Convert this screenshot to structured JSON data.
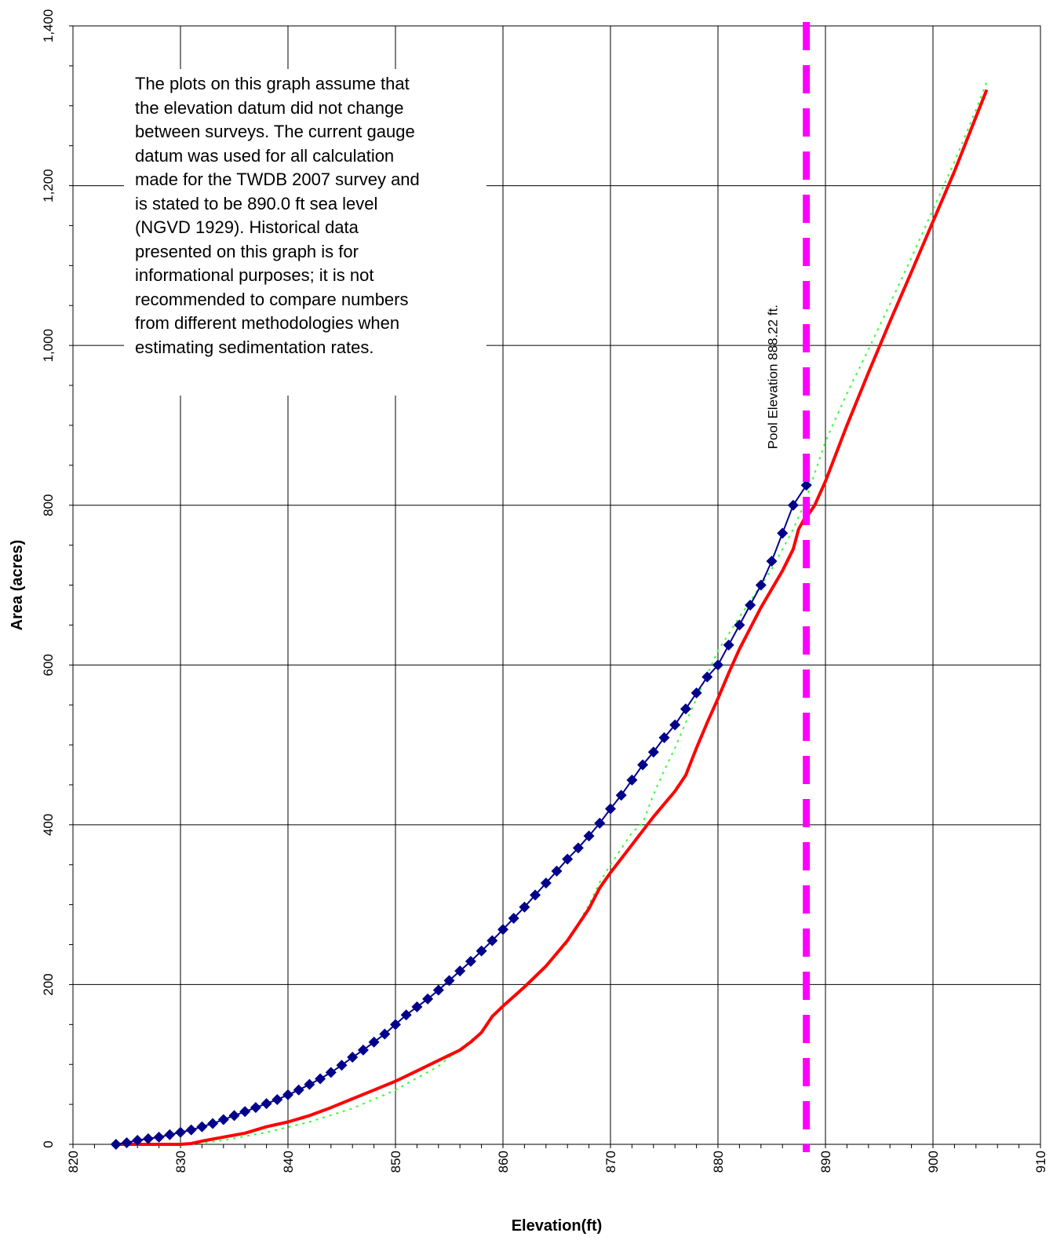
{
  "chart_data": {
    "type": "line",
    "title": "",
    "xlabel": "Elevation(ft)",
    "ylabel": "Area (acres)",
    "xlim": [
      820,
      910
    ],
    "ylim": [
      0,
      1400
    ],
    "x_ticks": [
      "820",
      "830",
      "840",
      "850",
      "860",
      "870",
      "880",
      "890",
      "900",
      "910"
    ],
    "y_ticks": [
      "0",
      "200",
      "400",
      "600",
      "800",
      "1,000",
      "1,200",
      "1,400"
    ],
    "grid": true,
    "legend": "none",
    "series": [
      {
        "color": "#00008B",
        "style": "line-with-diamond-markers",
        "x": [
          824,
          825,
          826,
          827,
          828,
          829,
          830,
          831,
          832,
          833,
          834,
          835,
          836,
          837,
          838,
          839,
          840,
          841,
          842,
          843,
          844,
          845,
          846,
          847,
          848,
          849,
          850,
          851,
          852,
          853,
          854,
          855,
          856,
          857,
          858,
          859,
          860,
          861,
          862,
          863,
          864,
          865,
          866,
          867,
          868,
          869,
          870,
          871,
          872,
          873,
          874,
          875,
          876,
          877,
          878,
          879,
          880,
          881,
          882,
          883,
          884,
          885,
          886,
          887,
          888.22
        ],
        "y": [
          0,
          2,
          5,
          7,
          9,
          12,
          15,
          18,
          22,
          26,
          31,
          36,
          41,
          46,
          51,
          56,
          62,
          68,
          75,
          82,
          90,
          99,
          109,
          118,
          128,
          138,
          150,
          162,
          172,
          182,
          193,
          205,
          217,
          229,
          242,
          255,
          269,
          283,
          297,
          312,
          327,
          342,
          357,
          371,
          386,
          402,
          420,
          437,
          456,
          475,
          491,
          509,
          525,
          545,
          565,
          585,
          600,
          625,
          650,
          675,
          700,
          730,
          765,
          800,
          825
        ]
      },
      {
        "color": "#FF0000",
        "style": "solid-line",
        "x": [
          824,
          826,
          828,
          830,
          831,
          832,
          834,
          836,
          838,
          840,
          842,
          844,
          846,
          848,
          850,
          852,
          854,
          856,
          857,
          858,
          859,
          860,
          862,
          864,
          866,
          868,
          869,
          870,
          872,
          874,
          876,
          877,
          878,
          879,
          880,
          881,
          882,
          884,
          886,
          887,
          887.5,
          888,
          888.5,
          889,
          890,
          892,
          894,
          896,
          898,
          900,
          902,
          904,
          905
        ],
        "y": [
          0,
          0,
          0,
          0,
          1,
          4,
          9,
          14,
          22,
          28,
          36,
          46,
          57,
          68,
          79,
          92,
          105,
          118,
          128,
          140,
          160,
          173,
          197,
          223,
          255,
          295,
          321,
          340,
          375,
          410,
          442,
          462,
          496,
          528,
          558,
          590,
          620,
          672,
          718,
          745,
          770,
          782,
          790,
          800,
          830,
          900,
          966,
          1030,
          1092,
          1155,
          1218,
          1286,
          1320
        ]
      },
      {
        "color": "#33FF33",
        "style": "dotted-line",
        "x": [
          831,
          834,
          838,
          842,
          846,
          850,
          854,
          857,
          858,
          859,
          860,
          862,
          864,
          866,
          868,
          869,
          870,
          871,
          872,
          873,
          874,
          875,
          876,
          877,
          878,
          879,
          880,
          882,
          884,
          885,
          886,
          887,
          888,
          889,
          890,
          892,
          894,
          896,
          898,
          900,
          902,
          904,
          905
        ],
        "y": [
          0,
          5,
          15,
          28,
          45,
          68,
          98,
          130,
          140,
          158,
          172,
          196,
          222,
          252,
          300,
          328,
          350,
          370,
          390,
          402,
          438,
          468,
          496,
          528,
          558,
          588,
          618,
          660,
          700,
          720,
          745,
          770,
          800,
          840,
          880,
          940,
          995,
          1052,
          1110,
          1170,
          1230,
          1295,
          1330
        ]
      }
    ],
    "reference_lines": [
      {
        "axis": "x",
        "value": 888.22,
        "color": "#FF00FF",
        "style": "dashed",
        "label": "Pool Elevation 888.22 ft."
      }
    ]
  },
  "annotation": {
    "lines": [
      "The plots on this graph assume that",
      "the elevation datum did not change",
      "between surveys. The current gauge",
      "datum was used for all calculation",
      "made for the TWDB 2007 survey and",
      "is stated to be 890.0 ft sea level",
      "(NGVD 1929). Historical data",
      "presented on this graph is for",
      "informational purposes; it is not",
      "recommended to compare numbers",
      "from different methodologies when",
      "estimating sedimentation rates."
    ]
  }
}
